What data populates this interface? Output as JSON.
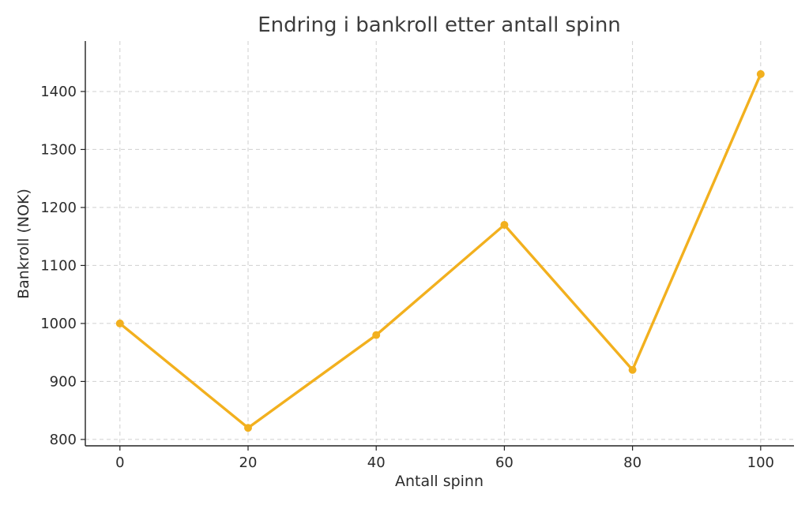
{
  "chart_data": {
    "type": "line",
    "title": "Endring i bankroll etter antall spinn",
    "xlabel": "Antall spinn",
    "ylabel": "Bankroll (NOK)",
    "x": [
      0,
      20,
      40,
      60,
      80,
      100
    ],
    "series": [
      {
        "values": [
          1000,
          820,
          980,
          1170,
          920,
          1430
        ]
      }
    ],
    "xticks": [
      0,
      20,
      40,
      60,
      80,
      100
    ],
    "yticks": [
      800,
      900,
      1000,
      1100,
      1200,
      1300,
      1400
    ],
    "xlim": [
      -5.4,
      105.2
    ],
    "ylim": [
      789,
      1487
    ],
    "grid": true,
    "line_color": "#f2b01e"
  }
}
